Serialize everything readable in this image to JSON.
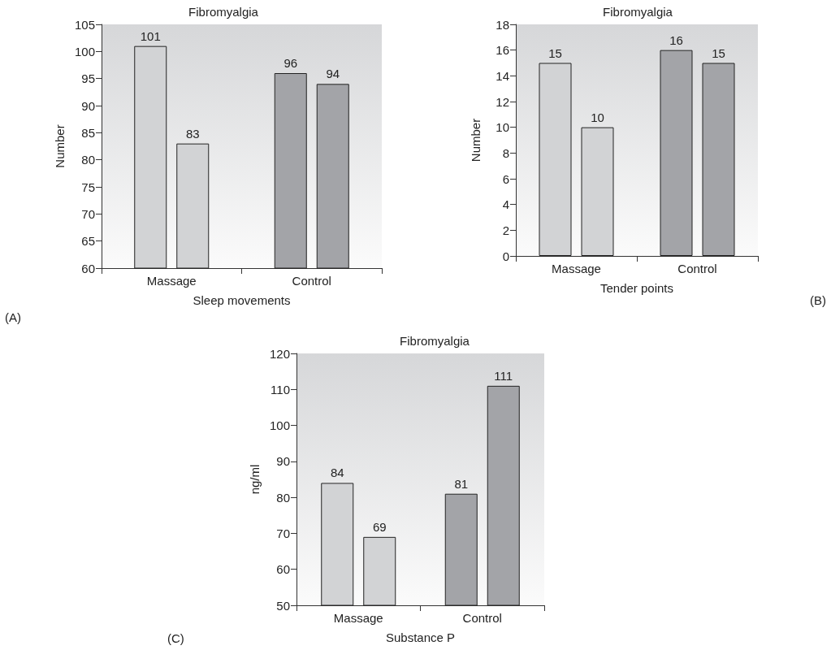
{
  "chart_data": [
    {
      "type": "bar",
      "title": "Fibromyalgia",
      "xlabel": "Sleep movements",
      "ylabel": "Number",
      "annotations": [
        "(A)"
      ],
      "categories": [
        "Massage",
        "Control"
      ],
      "series": [
        {
          "colors": [
            "#d2d3d5",
            "#a3a4a8"
          ],
          "values": [
            101,
            96
          ]
        },
        {
          "colors": [
            "#d2d3d5",
            "#a3a4a8"
          ],
          "values": [
            83,
            94
          ]
        }
      ],
      "ylim": [
        60,
        105
      ],
      "yticks": [
        60,
        65,
        70,
        75,
        80,
        85,
        90,
        95,
        100,
        105
      ],
      "data_labels": true,
      "grid": false
    },
    {
      "type": "bar",
      "title": "Fibromyalgia",
      "xlabel": "Tender points",
      "ylabel": "Number",
      "annotations": [
        "(B)"
      ],
      "categories": [
        "Massage",
        "Control"
      ],
      "series": [
        {
          "colors": [
            "#d2d3d5",
            "#a3a4a8"
          ],
          "values": [
            15,
            16
          ]
        },
        {
          "colors": [
            "#d2d3d5",
            "#a3a4a8"
          ],
          "values": [
            10,
            15
          ]
        }
      ],
      "ylim": [
        0,
        18
      ],
      "yticks": [
        0,
        2,
        4,
        6,
        8,
        10,
        12,
        14,
        16,
        18
      ],
      "data_labels": true,
      "grid": false
    },
    {
      "type": "bar",
      "title": "Fibromyalgia",
      "xlabel": "Substance P",
      "ylabel": "ng/ml",
      "annotations": [
        "(C)"
      ],
      "categories": [
        "Massage",
        "Control"
      ],
      "series": [
        {
          "colors": [
            "#d2d3d5",
            "#a3a4a8"
          ],
          "values": [
            84,
            81
          ]
        },
        {
          "colors": [
            "#d2d3d5",
            "#a3a4a8"
          ],
          "values": [
            69,
            111
          ]
        }
      ],
      "ylim": [
        50,
        120
      ],
      "yticks": [
        50,
        60,
        70,
        80,
        90,
        100,
        110,
        120
      ],
      "data_labels": true,
      "grid": false
    }
  ]
}
